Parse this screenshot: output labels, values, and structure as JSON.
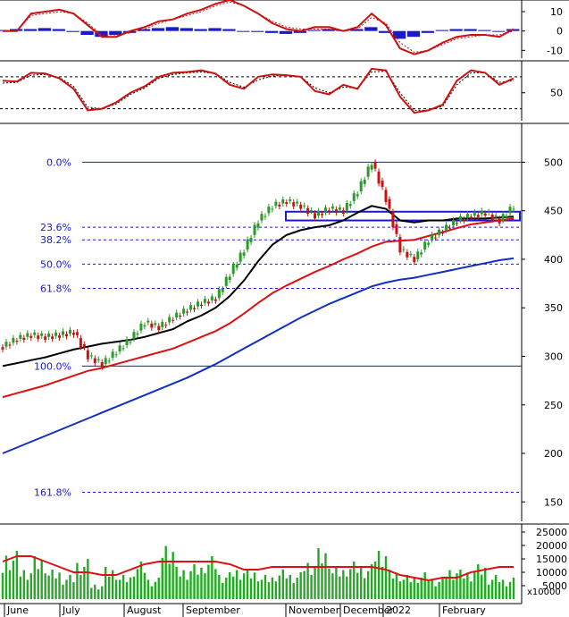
{
  "colors": {
    "up": "#2a9a2a",
    "down": "#cc1111",
    "fib": "#1a1acc",
    "ma_short": "#000000",
    "ma_mid": "#dd1111",
    "ma_long": "#1030c0",
    "volume": "#22aa22",
    "macd_hist": "#1a1acc",
    "indicator_line": "#cc1111"
  },
  "chart_data": [
    {
      "type": "bar",
      "panel": "MACD",
      "y_ticks": [
        "10",
        "0",
        "-10"
      ],
      "ylim": [
        -14,
        16
      ],
      "series": [
        {
          "values": [
            0,
            0,
            9,
            10,
            11,
            9,
            3,
            -3,
            -3,
            0,
            2,
            5,
            6,
            9,
            11,
            14,
            16,
            13,
            9,
            4,
            1,
            0,
            2,
            2,
            0,
            2,
            9,
            3,
            -9,
            -12,
            -10,
            -6,
            -3,
            -2,
            -2,
            -3,
            1
          ]
        },
        {
          "values": [
            0,
            0,
            8,
            9,
            10,
            9,
            4,
            -2,
            -2,
            -1,
            1,
            4,
            6,
            8,
            10,
            13,
            15,
            13,
            9,
            5,
            2,
            1,
            1,
            1,
            0,
            1,
            7,
            4,
            -6,
            -11,
            -10,
            -7,
            -4,
            -3,
            -2,
            -2,
            0
          ]
        }
      ],
      "histogram": [
        0.5,
        1,
        1,
        1.5,
        1,
        -0.5,
        -2,
        -3,
        -2,
        -1,
        1,
        1.5,
        2,
        1.5,
        1,
        1.5,
        1,
        0,
        -0.5,
        -1,
        -1.5,
        -1,
        0.5,
        1,
        0.5,
        1,
        2,
        -1,
        -4,
        -3,
        -1,
        0.5,
        1,
        1,
        0.5,
        0,
        1
      ]
    },
    {
      "type": "line",
      "panel": "RSI",
      "y_ticks": [
        "50"
      ],
      "ylim": [
        15,
        90
      ],
      "reference_lines": [
        70,
        30
      ],
      "series": [
        {
          "values": [
            65,
            64,
            75,
            74,
            68,
            55,
            28,
            30,
            38,
            50,
            58,
            70,
            75,
            76,
            78,
            74,
            60,
            55,
            70,
            73,
            72,
            70,
            52,
            48,
            60,
            55,
            80,
            78,
            45,
            25,
            28,
            35,
            65,
            78,
            75,
            60,
            68
          ]
        },
        {
          "values": [
            62,
            63,
            72,
            73,
            69,
            58,
            32,
            30,
            36,
            48,
            56,
            68,
            73,
            75,
            76,
            74,
            63,
            57,
            66,
            71,
            72,
            70,
            56,
            50,
            57,
            56,
            76,
            77,
            50,
            28,
            28,
            33,
            60,
            75,
            75,
            63,
            65
          ]
        }
      ]
    },
    {
      "type": "line",
      "panel": "Price",
      "y_ticks": [
        "500",
        "450",
        "400",
        "350",
        "300",
        "250",
        "200",
        "150"
      ],
      "ylim": [
        130,
        540
      ],
      "x_ticks": [
        "June",
        "July",
        "August",
        "September",
        "November",
        "December",
        "2022",
        "February"
      ],
      "fibonacci": [
        {
          "label": "0.0%",
          "value": 500
        },
        {
          "label": "23.6%",
          "value": 433
        },
        {
          "label": "38.2%",
          "value": 420
        },
        {
          "label": "50.0%",
          "value": 395
        },
        {
          "label": "61.8%",
          "value": 370
        },
        {
          "label": "100.0%",
          "value": 290
        },
        {
          "label": "161.8%",
          "value": 160
        }
      ],
      "box": {
        "from": 440,
        "to": 449
      },
      "series": [
        {
          "name_hidden": "close",
          "values": [
            310,
            318,
            322,
            320,
            322,
            325,
            300,
            292,
            305,
            318,
            335,
            330,
            340,
            348,
            355,
            360,
            385,
            410,
            440,
            455,
            460,
            455,
            445,
            452,
            450,
            470,
            500,
            462,
            410,
            400,
            420,
            430,
            440,
            445,
            448,
            440,
            455
          ]
        },
        {
          "values": [
            290,
            293,
            296,
            299,
            303,
            307,
            310,
            313,
            315,
            317,
            320,
            324,
            328,
            336,
            342,
            350,
            362,
            378,
            398,
            415,
            425,
            430,
            433,
            435,
            440,
            448,
            455,
            452,
            440,
            438,
            440,
            440,
            442,
            442,
            442,
            443,
            444
          ]
        },
        {
          "values": [
            258,
            262,
            266,
            270,
            275,
            280,
            285,
            288,
            292,
            296,
            300,
            304,
            308,
            314,
            320,
            326,
            334,
            344,
            355,
            365,
            373,
            380,
            387,
            393,
            400,
            406,
            413,
            418,
            419,
            420,
            424,
            428,
            432,
            436,
            438,
            440,
            442
          ]
        },
        {
          "values": [
            200,
            206,
            212,
            218,
            224,
            230,
            236,
            242,
            248,
            254,
            260,
            266,
            272,
            278,
            285,
            292,
            300,
            308,
            316,
            324,
            332,
            340,
            347,
            354,
            360,
            366,
            372,
            376,
            379,
            381,
            384,
            387,
            390,
            393,
            396,
            399,
            401
          ]
        }
      ]
    },
    {
      "type": "bar",
      "panel": "Volume",
      "y_ticks": [
        "25000",
        "20000",
        "15000",
        "10000",
        "5000"
      ],
      "unit_label": "x10000",
      "ylim": [
        0,
        28000
      ],
      "series": [
        {
          "values": [
            14000,
            18000,
            12000,
            16000,
            11000,
            9000,
            15000,
            6000,
            12000,
            9000,
            14000,
            8000,
            22000,
            12000,
            13000,
            16000,
            10000,
            12000,
            11000,
            9000,
            11000,
            10000,
            15000,
            19000,
            12000,
            14000,
            13000,
            20000,
            11000,
            9000,
            10000,
            8000,
            12000,
            11000,
            13000,
            9000,
            8000
          ]
        },
        {
          "values": [
            14000,
            16000,
            16000,
            14000,
            12000,
            10000,
            10000,
            9000,
            9000,
            11000,
            13000,
            14000,
            14000,
            14000,
            14000,
            14000,
            13000,
            11000,
            11000,
            12000,
            12000,
            12000,
            12000,
            12000,
            12000,
            12000,
            12000,
            11000,
            9000,
            8000,
            7000,
            8000,
            8000,
            10000,
            11000,
            12000,
            12000
          ]
        }
      ]
    }
  ]
}
